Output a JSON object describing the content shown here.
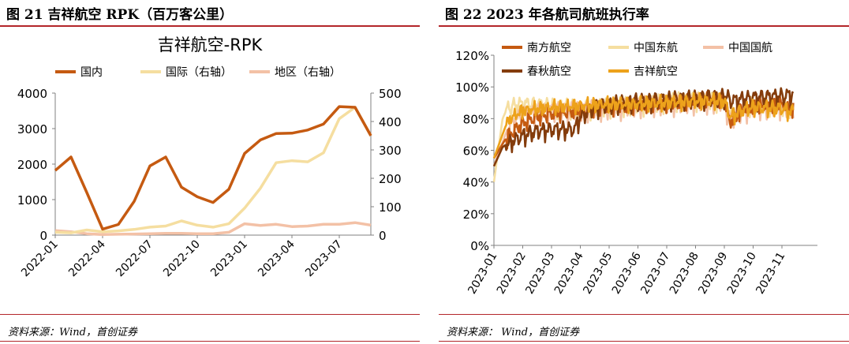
{
  "left_panel": {
    "figure_title": "图 21 吉祥航空 RPK（百万客公里）",
    "source": "资料来源：Wind，首创证券"
  },
  "right_panel": {
    "figure_title": "图 22 2023 年各航司航班执行率",
    "source": "资料来源：  Wind，首创证券"
  },
  "colors": {
    "rule": "#b3262a",
    "domestic": "#c55a11",
    "international": "#f5dea0",
    "regional": "#f3c1a6",
    "china_southern": "#c55a11",
    "air_china": "#f5dea0",
    "china_eastern": "#f3c1a6",
    "spring": "#843c0c",
    "juneyao": "#eda21b"
  },
  "chart_data": [
    {
      "type": "line",
      "title": "吉祥航空-RPK",
      "x": [
        "2022-01",
        "2022-02",
        "2022-03",
        "2022-04",
        "2022-05",
        "2022-06",
        "2022-07",
        "2022-08",
        "2022-09",
        "2022-10",
        "2022-11",
        "2022-12",
        "2023-01",
        "2023-02",
        "2023-03",
        "2023-04",
        "2023-05",
        "2023-06",
        "2023-07",
        "2023-08",
        "2023-09"
      ],
      "x_tick_labels": [
        "2022-01",
        "2022-04",
        "2022-07",
        "2022-10",
        "2023-01",
        "2023-04",
        "2023-07"
      ],
      "x_tick_index": [
        0,
        3,
        6,
        9,
        12,
        15,
        18
      ],
      "y_left": {
        "range": [
          0,
          4000
        ],
        "ticks": [
          "0",
          "1000",
          "2000",
          "3000",
          "4000"
        ]
      },
      "y_right": {
        "range": [
          0,
          500
        ],
        "ticks": [
          "0",
          "100",
          "200",
          "300",
          "400",
          "500"
        ]
      },
      "series": [
        {
          "name": "国内",
          "axis": "left",
          "color": "#c55a11",
          "values": [
            1820,
            2200,
            1200,
            170,
            300,
            950,
            1950,
            2200,
            1350,
            1080,
            920,
            1290,
            2300,
            2680,
            2860,
            2870,
            2960,
            3130,
            3620,
            3600,
            2800
          ]
        },
        {
          "name": "国际（右轴）",
          "axis": "right",
          "color": "#f5dea0",
          "values": [
            10,
            8,
            18,
            12,
            15,
            20,
            28,
            32,
            50,
            35,
            28,
            40,
            95,
            165,
            255,
            262,
            258,
            290,
            410,
            450,
            350
          ]
        },
        {
          "name": "地区（右轴）",
          "axis": "right",
          "color": "#f3c1a6",
          "values": [
            16,
            12,
            5,
            2,
            3,
            4,
            5,
            6,
            6,
            5,
            5,
            10,
            40,
            34,
            38,
            30,
            32,
            38,
            38,
            44,
            35
          ]
        }
      ],
      "legend_position": "top",
      "grid": false
    },
    {
      "type": "line",
      "title": "",
      "x_tick_labels": [
        "2023-01",
        "2023-02",
        "2023-03",
        "2023-04",
        "2023-05",
        "2023-06",
        "2023-07",
        "2023-08",
        "2023-09",
        "2023-10",
        "2023-11"
      ],
      "y": {
        "range": [
          0,
          120
        ],
        "ticks": [
          "0%",
          "20%",
          "40%",
          "60%",
          "80%",
          "100%",
          "120%"
        ]
      },
      "series": [
        {
          "name": "南方航空",
          "color": "#c55a11",
          "anchors": [
            [
              0,
              55
            ],
            [
              0.5,
              70
            ],
            [
              1,
              78
            ],
            [
              1.5,
              82
            ],
            [
              2,
              84
            ],
            [
              3,
              86
            ],
            [
              4,
              88
            ],
            [
              5,
              89
            ],
            [
              6,
              90
            ],
            [
              7,
              92
            ],
            [
              8,
              93
            ],
            [
              8.2,
              78
            ],
            [
              8.6,
              86
            ],
            [
              9,
              88
            ],
            [
              10,
              90
            ],
            [
              10.4,
              86
            ]
          ]
        },
        {
          "name": "中国东航",
          "color": "#f5dea0",
          "anchors": [
            [
              0,
              40
            ],
            [
              0.3,
              80
            ],
            [
              0.5,
              88
            ],
            [
              1,
              90
            ],
            [
              2,
              89
            ],
            [
              3,
              88
            ],
            [
              4,
              89
            ],
            [
              5,
              90
            ],
            [
              6,
              92
            ],
            [
              7,
              93
            ],
            [
              8,
              92
            ],
            [
              8.2,
              84
            ],
            [
              8.6,
              88
            ],
            [
              9,
              90
            ],
            [
              10,
              89
            ],
            [
              10.4,
              87
            ]
          ]
        },
        {
          "name": "中国国航",
          "color": "#f3c1a6",
          "anchors": [
            [
              0,
              50
            ],
            [
              0.5,
              75
            ],
            [
              1,
              84
            ],
            [
              2,
              86
            ],
            [
              3,
              87
            ],
            [
              4,
              88
            ],
            [
              5,
              90
            ],
            [
              6,
              91
            ],
            [
              7,
              92
            ],
            [
              8,
              92
            ],
            [
              8.2,
              80
            ],
            [
              8.6,
              86
            ],
            [
              9,
              88
            ],
            [
              10,
              89
            ],
            [
              10.4,
              88
            ]
          ]
        },
        {
          "name": "春秋航空",
          "color": "#843c0c",
          "anchors": [
            [
              0,
              50
            ],
            [
              0.3,
              62
            ],
            [
              0.6,
              66
            ],
            [
              1,
              70
            ],
            [
              1.5,
              73
            ],
            [
              2,
              74
            ],
            [
              2.8,
              74
            ],
            [
              3,
              82
            ],
            [
              3.5,
              88
            ],
            [
              4,
              90
            ],
            [
              5,
              92
            ],
            [
              6,
              93
            ],
            [
              7,
              94
            ],
            [
              8,
              95
            ],
            [
              8.3,
              92
            ],
            [
              9,
              94
            ],
            [
              10,
              95
            ],
            [
              10.4,
              96
            ]
          ]
        },
        {
          "name": "吉祥航空",
          "color": "#eda21b",
          "anchors": [
            [
              0,
              55
            ],
            [
              0.5,
              80
            ],
            [
              1,
              86
            ],
            [
              2,
              88
            ],
            [
              3,
              89
            ],
            [
              4,
              90
            ],
            [
              5,
              90
            ],
            [
              6,
              91
            ],
            [
              7,
              92
            ],
            [
              8,
              92
            ],
            [
              8.2,
              82
            ],
            [
              8.6,
              86
            ],
            [
              9,
              88
            ],
            [
              10,
              87
            ],
            [
              10.4,
              85
            ]
          ]
        }
      ],
      "legend_position": "top-left inside",
      "grid": false
    }
  ]
}
